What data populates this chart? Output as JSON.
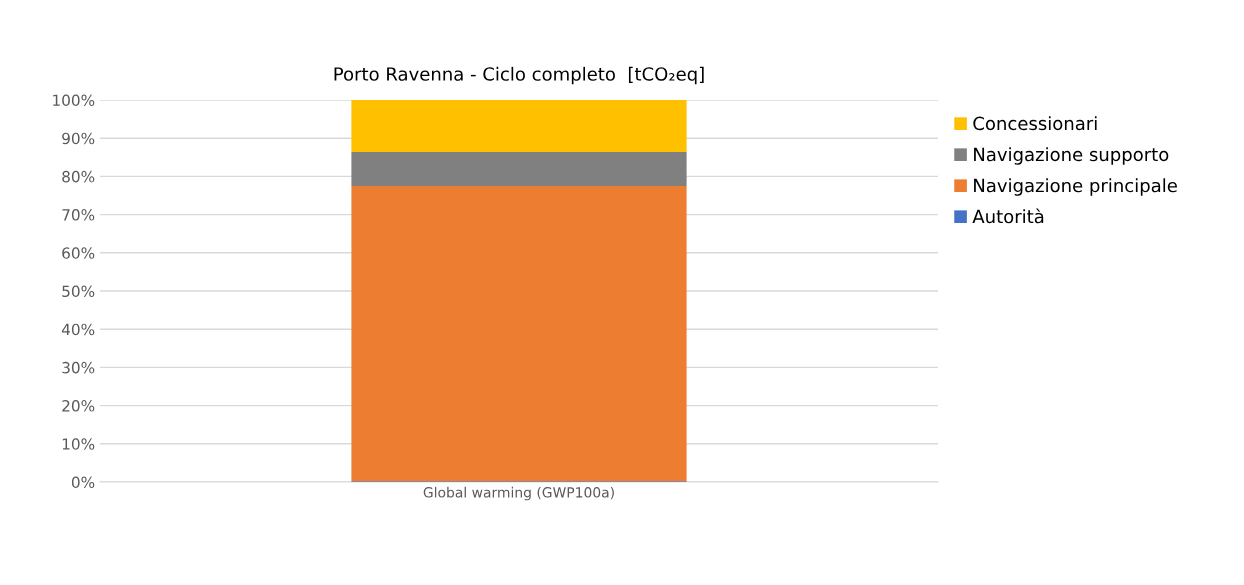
{
  "chart_data": {
    "type": "bar",
    "stacked": true,
    "title": "Porto Ravenna - Ciclo completo  [tCO₂eq]",
    "categories": [
      "Global warming (GWP100a)"
    ],
    "series": [
      {
        "name": "Autorità",
        "color": "#4472c4",
        "values": [
          0.2
        ]
      },
      {
        "name": "Navigazione principale",
        "color": "#ed7d31",
        "values": [
          77.3
        ]
      },
      {
        "name": "Navigazione supporto",
        "color": "#808080",
        "values": [
          8.9
        ]
      },
      {
        "name": "Concessionari",
        "color": "#ffc000",
        "values": [
          13.6
        ]
      }
    ],
    "ylim": [
      0,
      100
    ],
    "yticks": [
      {
        "value": 0,
        "label": "0%"
      },
      {
        "value": 10,
        "label": "10%"
      },
      {
        "value": 20,
        "label": "20%"
      },
      {
        "value": 30,
        "label": "30%"
      },
      {
        "value": 40,
        "label": "40%"
      },
      {
        "value": 50,
        "label": "50%"
      },
      {
        "value": 60,
        "label": "60%"
      },
      {
        "value": 70,
        "label": "70%"
      },
      {
        "value": 80,
        "label": "80%"
      },
      {
        "value": 90,
        "label": "90%"
      },
      {
        "value": 100,
        "label": "100%"
      }
    ],
    "grid": "y",
    "legend": "right"
  }
}
